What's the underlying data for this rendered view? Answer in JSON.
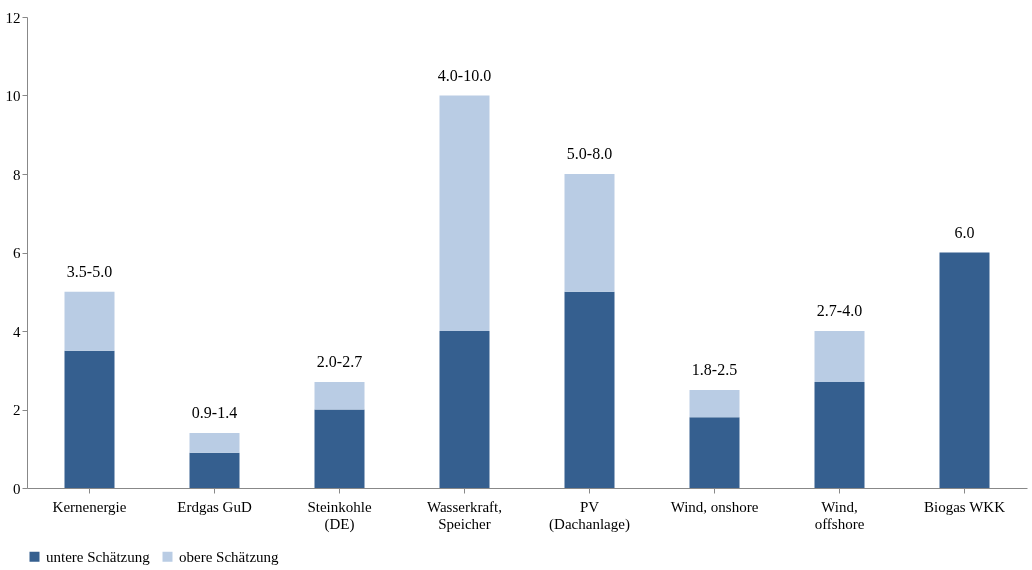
{
  "chart_data": {
    "type": "bar",
    "stacked": true,
    "categories": [
      "Kernenergie",
      "Erdgas GuD",
      "Steinkohle\n(DE)",
      "Wasserkraft,\nSpeicher",
      "PV\n(Dachanlage)",
      "Wind, onshore",
      "Wind,\noffshore",
      "Biogas WKK"
    ],
    "series": [
      {
        "name": "untere Schätzung",
        "color": "#355f8f",
        "values": [
          3.5,
          0.9,
          2.0,
          4.0,
          5.0,
          1.8,
          2.7,
          6.0
        ]
      },
      {
        "name": "obere Schätzung",
        "color": "#b9cce4",
        "values": [
          1.5,
          0.5,
          0.7,
          6.0,
          3.0,
          0.7,
          1.3,
          null
        ]
      }
    ],
    "totals": [
      "3.5-5.0",
      "0.9-1.4",
      "2.0-2.7",
      "4.0-10.0",
      "5.0-8.0",
      "1.8-2.5",
      "2.7-4.0",
      "6.0"
    ],
    "ylim": [
      0,
      12
    ],
    "yticks": [
      0,
      2,
      4,
      6,
      8,
      10,
      12
    ],
    "grid": false,
    "legend": "bottom"
  }
}
